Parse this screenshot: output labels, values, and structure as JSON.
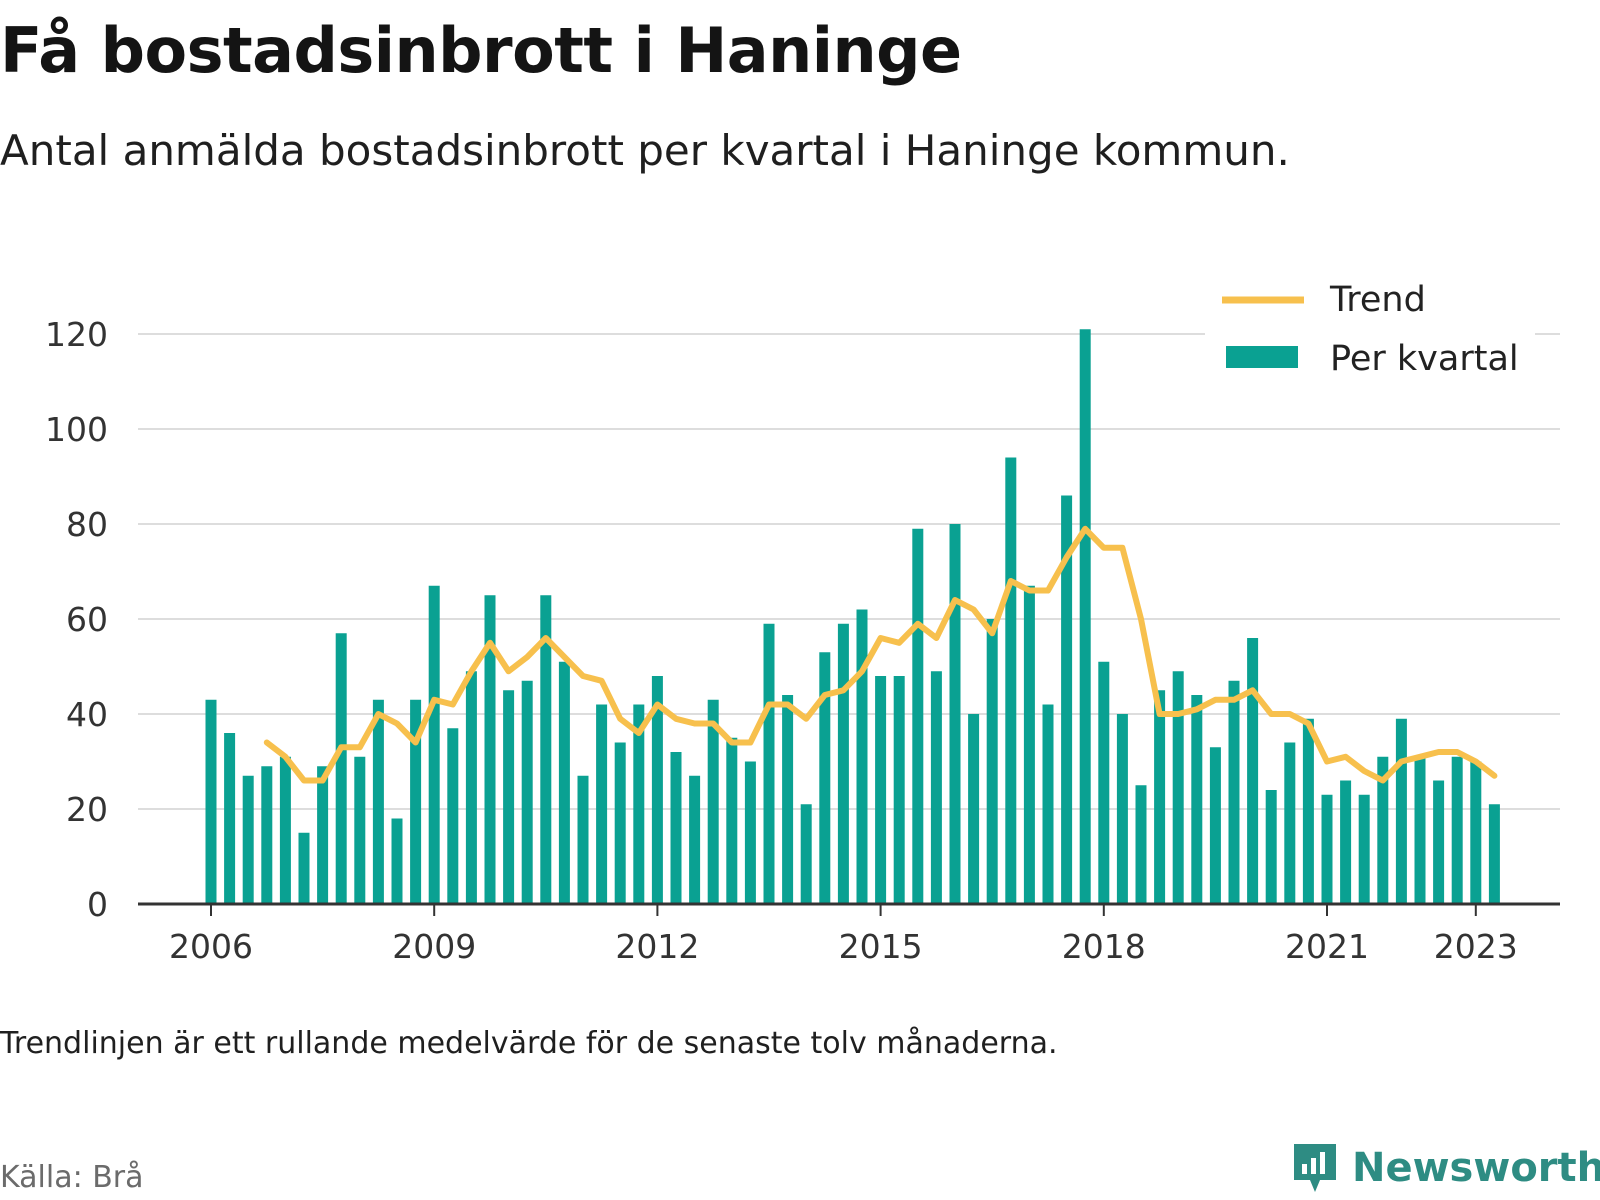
{
  "header": {
    "title": "Få bostadsinbrott i Haninge",
    "subtitle": "Antal anmälda bostadsinbrott per kvartal i Haninge kommun."
  },
  "footer": {
    "note": "Trendlinjen är ett rullande medelvärde för de senaste tolv månaderna.",
    "source": "Källa: Brå",
    "brand": "Newsworthy"
  },
  "colors": {
    "bars": "#0aa192",
    "trend": "#f7c04d",
    "grid": "#dddddd",
    "axis": "#333333",
    "brand": "#2e8c83"
  },
  "chart_data": {
    "type": "bar",
    "x_unit": "quarter",
    "x_start": "2006-Q1",
    "xticks": [
      "2006",
      "2009",
      "2012",
      "2015",
      "2018",
      "2021",
      "2023"
    ],
    "yticks": [
      0,
      20,
      40,
      60,
      80,
      100,
      120
    ],
    "ylim": [
      0,
      120
    ],
    "grid": true,
    "legend_position": "top-right",
    "series": [
      {
        "name": "Per kvartal",
        "type": "bar",
        "values": [
          43,
          36,
          27,
          29,
          31,
          15,
          29,
          57,
          31,
          43,
          18,
          43,
          67,
          37,
          49,
          65,
          45,
          47,
          65,
          51,
          27,
          42,
          34,
          42,
          48,
          32,
          27,
          43,
          35,
          30,
          59,
          44,
          21,
          53,
          59,
          62,
          48,
          48,
          79,
          49,
          80,
          40,
          60,
          94,
          67,
          42,
          86,
          121,
          51,
          40,
          25,
          45,
          49,
          44,
          33,
          47,
          56,
          24,
          34,
          39,
          23,
          26,
          23,
          31,
          39,
          31,
          26,
          31,
          30,
          21
        ]
      },
      {
        "name": "Trend",
        "type": "line",
        "values": [
          null,
          null,
          null,
          34,
          31,
          26,
          26,
          33,
          33,
          40,
          38,
          34,
          43,
          42,
          49,
          55,
          49,
          52,
          56,
          52,
          48,
          47,
          39,
          36,
          42,
          39,
          38,
          38,
          34,
          34,
          42,
          42,
          39,
          44,
          45,
          49,
          56,
          55,
          59,
          56,
          64,
          62,
          57,
          68,
          66,
          66,
          73,
          79,
          75,
          75,
          60,
          40,
          40,
          41,
          43,
          43,
          45,
          40,
          40,
          38,
          30,
          31,
          28,
          26,
          30,
          31,
          32,
          32,
          30,
          27
        ]
      }
    ]
  }
}
